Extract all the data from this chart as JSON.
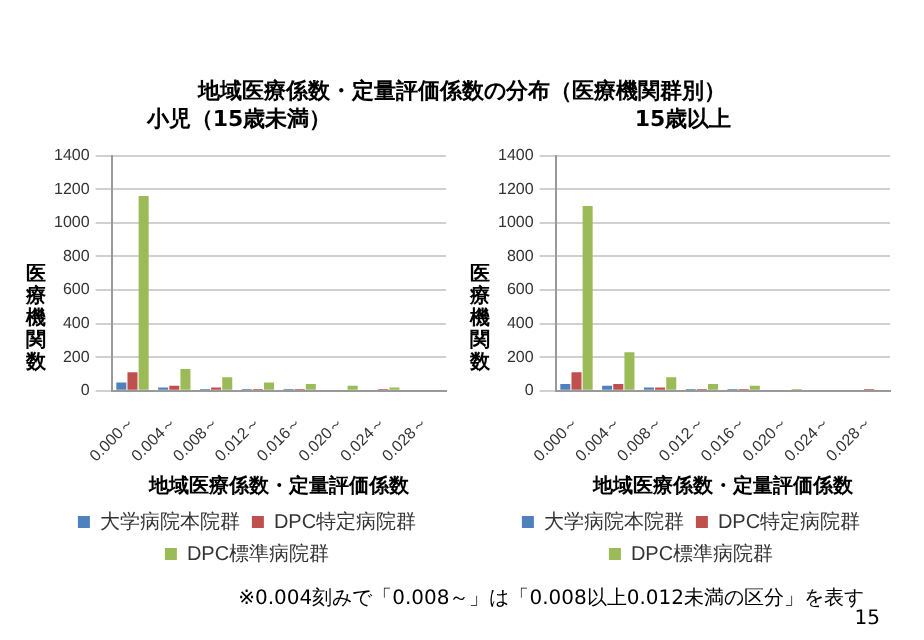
{
  "chart_data": [
    {
      "type": "bar",
      "title": "小児（15歳未満）",
      "annotations": [
        "地域医療係数・定量評価係数の分布（医療機関群別）"
      ],
      "xlabel": "地域医療係数・定量評価係数",
      "ylabel": "医療機関数",
      "categories": [
        "0.000～",
        "0.004～",
        "0.008～",
        "0.012～",
        "0.016～",
        "0.020～",
        "0.024～",
        "0.028～"
      ],
      "series": [
        {
          "name": "大学病院本院群",
          "color": "#4f81bd",
          "values": [
            50,
            20,
            10,
            10,
            10,
            0,
            0,
            0
          ]
        },
        {
          "name": "DPC特定病院群",
          "color": "#c0504d",
          "values": [
            110,
            30,
            20,
            10,
            10,
            0,
            10,
            0
          ]
        },
        {
          "name": "DPC標準病院群",
          "color": "#9bbb59",
          "values": [
            1160,
            130,
            80,
            50,
            40,
            30,
            20,
            0
          ]
        }
      ],
      "ylim": [
        0,
        1400
      ],
      "yticks": [
        0,
        200,
        400,
        600,
        800,
        1000,
        1200,
        1400
      ],
      "grid": "y",
      "legend": "bottom"
    },
    {
      "type": "bar",
      "title": "15歳以上",
      "annotations": [
        "※0.004刻みで「0.008～」は「0.008以上0.012未満の区分」を表す",
        "15"
      ],
      "xlabel": "地域医療係数・定量評価係数",
      "ylabel": "医療機関数",
      "categories": [
        "0.000～",
        "0.004～",
        "0.008～",
        "0.012～",
        "0.016～",
        "0.020～",
        "0.024～",
        "0.028～"
      ],
      "series": [
        {
          "name": "大学病院本院群",
          "color": "#4f81bd",
          "values": [
            40,
            30,
            20,
            10,
            10,
            0,
            0,
            0
          ]
        },
        {
          "name": "DPC特定病院群",
          "color": "#c0504d",
          "values": [
            110,
            40,
            20,
            10,
            10,
            0,
            0,
            10
          ]
        },
        {
          "name": "DPC標準病院群",
          "color": "#9bbb59",
          "values": [
            1100,
            230,
            80,
            40,
            30,
            10,
            0,
            0
          ]
        }
      ],
      "ylim": [
        0,
        1400
      ],
      "yticks": [
        0,
        200,
        400,
        600,
        800,
        1000,
        1200,
        1400
      ],
      "grid": "y",
      "legend": "bottom"
    }
  ]
}
